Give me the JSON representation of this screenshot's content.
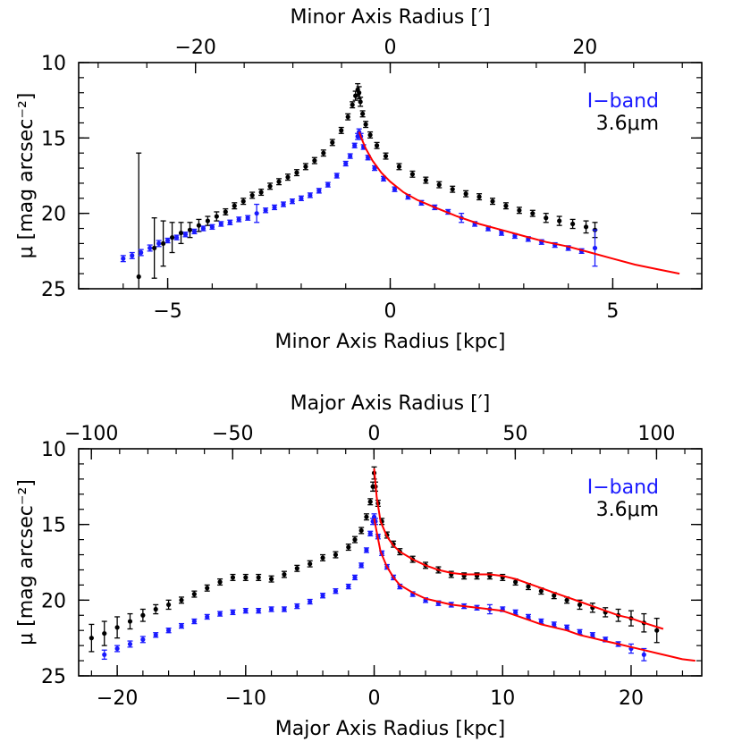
{
  "chart_data": [
    {
      "type": "scatter",
      "panel": "minor",
      "xlabel": "Minor Axis Radius [kpc]",
      "x2label": "Minor Axis Radius [′]",
      "ylabel": "μ [mag arcsec⁻²]",
      "xlim": [
        -7.0,
        7.0
      ],
      "x2lim": [
        -32.0,
        32.0
      ],
      "ylim": [
        25,
        10
      ],
      "x_ticks": [
        -5,
        0,
        5
      ],
      "x2_ticks": [
        -20,
        0,
        20
      ],
      "y_ticks": [
        10,
        15,
        20,
        25
      ],
      "colors": {
        "iband": "#1a1aff",
        "irac": "#000000",
        "model": "#ff0000"
      },
      "legend": {
        "position": "top-right",
        "entries": [
          {
            "label": "I−band",
            "color": "#1a1aff"
          },
          {
            "label": "3.6μm",
            "color": "#000000"
          }
        ]
      },
      "series": [
        {
          "name": "3.6μm",
          "color": "#000000",
          "x": [
            -5.65,
            -5.3,
            -5.1,
            -4.9,
            -4.7,
            -4.5,
            -4.3,
            -4.1,
            -3.9,
            -3.7,
            -3.5,
            -3.3,
            -3.1,
            -2.9,
            -2.7,
            -2.5,
            -2.3,
            -2.1,
            -1.9,
            -1.7,
            -1.5,
            -1.3,
            -1.1,
            -0.95,
            -0.85,
            -0.78,
            -0.73,
            -0.7,
            -0.67,
            -0.62,
            -0.55,
            -0.45,
            -0.3,
            -0.1,
            0.2,
            0.5,
            0.8,
            1.1,
            1.4,
            1.7,
            2.0,
            2.3,
            2.6,
            2.9,
            3.2,
            3.5,
            3.8,
            4.1,
            4.4,
            4.6
          ],
          "y": [
            24.2,
            22.3,
            22.0,
            21.6,
            21.3,
            21.1,
            20.8,
            20.5,
            20.2,
            19.9,
            19.5,
            19.2,
            18.8,
            18.6,
            18.2,
            17.9,
            17.6,
            17.3,
            16.9,
            16.5,
            16.0,
            15.3,
            14.5,
            13.6,
            12.8,
            12.2,
            11.8,
            12.0,
            12.6,
            13.4,
            14.1,
            14.8,
            15.5,
            16.2,
            16.9,
            17.4,
            17.8,
            18.1,
            18.4,
            18.7,
            18.9,
            19.2,
            19.5,
            19.8,
            20.0,
            20.3,
            20.5,
            20.7,
            20.9,
            21.1
          ],
          "yerr": [
            8.2,
            2.0,
            1.5,
            1.0,
            0.7,
            0.5,
            0.4,
            0.3,
            0.3,
            0.2,
            0.2,
            0.2,
            0.2,
            0.2,
            0.2,
            0.2,
            0.2,
            0.2,
            0.2,
            0.2,
            0.2,
            0.2,
            0.2,
            0.2,
            0.2,
            0.3,
            0.4,
            0.4,
            0.3,
            0.2,
            0.2,
            0.2,
            0.2,
            0.2,
            0.2,
            0.2,
            0.2,
            0.2,
            0.2,
            0.2,
            0.2,
            0.2,
            0.2,
            0.2,
            0.2,
            0.3,
            0.3,
            0.3,
            0.4,
            0.5
          ]
        },
        {
          "name": "I−band",
          "color": "#1a1aff",
          "x": [
            -6.0,
            -5.8,
            -5.6,
            -5.4,
            -5.2,
            -5.0,
            -4.8,
            -4.6,
            -4.4,
            -4.2,
            -4.0,
            -3.8,
            -3.6,
            -3.4,
            -3.2,
            -3.0,
            -2.8,
            -2.6,
            -2.4,
            -2.2,
            -2.0,
            -1.8,
            -1.6,
            -1.4,
            -1.2,
            -1.0,
            -0.9,
            -0.8,
            -0.73,
            -0.7,
            -0.66,
            -0.6,
            -0.5,
            -0.35,
            -0.15,
            0.1,
            0.4,
            0.7,
            1.0,
            1.3,
            1.6,
            1.9,
            2.2,
            2.5,
            2.8,
            3.1,
            3.4,
            3.7,
            4.0,
            4.3,
            4.6
          ],
          "y": [
            23.0,
            22.8,
            22.6,
            22.3,
            22.0,
            21.8,
            21.6,
            21.4,
            21.2,
            21.0,
            20.9,
            20.7,
            20.6,
            20.4,
            20.3,
            20.0,
            19.8,
            19.6,
            19.4,
            19.2,
            19.0,
            18.8,
            18.5,
            18.1,
            17.5,
            16.7,
            16.2,
            15.5,
            14.9,
            14.6,
            14.9,
            15.6,
            16.3,
            17.0,
            17.7,
            18.4,
            18.9,
            19.3,
            19.6,
            19.9,
            20.3,
            20.7,
            21.0,
            21.3,
            21.5,
            21.7,
            21.9,
            22.1,
            22.3,
            22.5,
            22.3
          ],
          "yerr": [
            0.2,
            0.2,
            0.2,
            0.2,
            0.2,
            0.15,
            0.15,
            0.15,
            0.15,
            0.15,
            0.15,
            0.15,
            0.15,
            0.15,
            0.15,
            0.6,
            0.15,
            0.15,
            0.15,
            0.15,
            0.15,
            0.15,
            0.15,
            0.15,
            0.15,
            0.15,
            0.15,
            0.15,
            0.2,
            0.2,
            0.2,
            0.15,
            0.15,
            0.15,
            0.15,
            0.15,
            0.15,
            0.15,
            0.15,
            0.15,
            0.3,
            0.15,
            0.15,
            0.15,
            0.15,
            0.15,
            0.15,
            0.15,
            0.15,
            0.15,
            1.2
          ]
        }
      ],
      "models": [
        {
          "color": "#ff0000",
          "x": [
            -0.7,
            -0.65,
            -0.55,
            -0.4,
            -0.2,
            0.0,
            0.3,
            0.6,
            1.0,
            1.5,
            2.0,
            2.5,
            3.0,
            3.5,
            4.0,
            4.5,
            5.0,
            5.5,
            6.0,
            6.5
          ],
          "y": [
            14.6,
            15.0,
            15.7,
            16.5,
            17.3,
            17.9,
            18.6,
            19.1,
            19.6,
            20.2,
            20.7,
            21.1,
            21.5,
            21.9,
            22.2,
            22.6,
            23.0,
            23.4,
            23.7,
            24.0
          ]
        }
      ]
    },
    {
      "type": "scatter",
      "panel": "major",
      "xlabel": "Major Axis Radius [kpc]",
      "x2label": "Major Axis Radius [′]",
      "ylabel": "μ [mag arcsec⁻²]",
      "xlim": [
        -23.0,
        25.5
      ],
      "x2lim": [
        -104.5,
        116.0
      ],
      "ylim": [
        25,
        10
      ],
      "x_ticks": [
        -20,
        -10,
        0,
        10,
        20
      ],
      "x2_ticks": [
        -100,
        -50,
        0,
        50,
        100
      ],
      "y_ticks": [
        10,
        15,
        20,
        25
      ],
      "colors": {
        "iband": "#1a1aff",
        "irac": "#000000",
        "model": "#ff0000"
      },
      "legend": {
        "position": "top-right",
        "entries": [
          {
            "label": "I−band",
            "color": "#1a1aff"
          },
          {
            "label": "3.6μm",
            "color": "#000000"
          }
        ]
      },
      "series": [
        {
          "name": "3.6μm",
          "color": "#000000",
          "x": [
            -22,
            -21,
            -20,
            -19,
            -18,
            -17,
            -16,
            -15,
            -14,
            -13,
            -12,
            -11,
            -10,
            -9,
            -8,
            -7,
            -6,
            -5,
            -4,
            -3,
            -2,
            -1.5,
            -1,
            -0.6,
            -0.3,
            -0.1,
            0,
            0.1,
            0.3,
            0.6,
            1,
            1.5,
            2,
            3,
            4,
            5,
            6,
            7,
            8,
            9,
            10,
            11,
            12,
            13,
            14,
            15,
            16,
            17,
            18,
            19,
            20,
            21,
            22
          ],
          "y": [
            22.5,
            22.2,
            21.8,
            21.4,
            21.0,
            20.6,
            20.3,
            20.0,
            19.6,
            19.2,
            18.8,
            18.5,
            18.5,
            18.5,
            18.6,
            18.3,
            17.9,
            17.6,
            17.2,
            17.0,
            16.5,
            16.0,
            15.4,
            14.5,
            13.5,
            12.5,
            11.6,
            12.5,
            13.6,
            14.8,
            15.7,
            16.3,
            16.8,
            17.3,
            17.7,
            18.0,
            18.3,
            18.4,
            18.4,
            18.4,
            18.5,
            18.8,
            19.1,
            19.4,
            19.7,
            20.0,
            20.3,
            20.5,
            20.8,
            21.0,
            21.2,
            21.5,
            22.0
          ],
          "yerr": [
            0.9,
            0.8,
            0.7,
            0.5,
            0.4,
            0.3,
            0.3,
            0.2,
            0.2,
            0.2,
            0.2,
            0.2,
            0.2,
            0.2,
            0.2,
            0.2,
            0.2,
            0.2,
            0.2,
            0.2,
            0.2,
            0.2,
            0.2,
            0.2,
            0.2,
            0.3,
            0.4,
            0.3,
            0.2,
            0.2,
            0.2,
            0.2,
            0.2,
            0.2,
            0.2,
            0.2,
            0.2,
            0.2,
            0.2,
            0.2,
            0.2,
            0.2,
            0.2,
            0.2,
            0.2,
            0.2,
            0.3,
            0.3,
            0.3,
            0.4,
            0.5,
            0.6,
            0.8
          ]
        },
        {
          "name": "I−band",
          "color": "#1a1aff",
          "x": [
            -21,
            -20,
            -19,
            -18,
            -17,
            -16,
            -15,
            -14,
            -13,
            -12,
            -11,
            -10,
            -9,
            -8,
            -7,
            -6,
            -5,
            -4,
            -3,
            -2,
            -1.5,
            -1,
            -0.6,
            -0.3,
            -0.1,
            0,
            0.1,
            0.3,
            0.6,
            1,
            1.5,
            2,
            3,
            4,
            5,
            6,
            7,
            8,
            9,
            10,
            11,
            12,
            13,
            14,
            15,
            16,
            17,
            18,
            19,
            20,
            21
          ],
          "y": [
            23.6,
            23.2,
            22.9,
            22.6,
            22.3,
            22.0,
            21.7,
            21.4,
            21.1,
            20.9,
            20.8,
            20.7,
            20.7,
            20.6,
            20.6,
            20.4,
            20.1,
            19.7,
            19.4,
            19.1,
            18.5,
            17.7,
            16.7,
            15.6,
            14.8,
            14.5,
            14.8,
            15.8,
            16.9,
            17.8,
            18.5,
            19.1,
            19.6,
            20.0,
            20.2,
            20.3,
            20.4,
            20.5,
            20.6,
            20.6,
            20.8,
            21.1,
            21.4,
            21.6,
            21.8,
            22.1,
            22.3,
            22.6,
            22.9,
            23.2,
            23.6
          ],
          "yerr": [
            0.3,
            0.2,
            0.2,
            0.2,
            0.15,
            0.15,
            0.15,
            0.15,
            0.15,
            0.15,
            0.15,
            0.15,
            0.15,
            0.15,
            0.15,
            0.15,
            0.15,
            0.15,
            0.15,
            0.15,
            0.15,
            0.15,
            0.15,
            0.15,
            0.2,
            0.2,
            0.2,
            0.15,
            0.15,
            0.15,
            0.15,
            0.15,
            0.15,
            0.15,
            0.15,
            0.15,
            0.15,
            0.15,
            0.3,
            0.15,
            0.15,
            0.15,
            0.15,
            0.15,
            0.15,
            0.15,
            0.15,
            0.15,
            0.15,
            0.3,
            0.4
          ]
        }
      ],
      "models": [
        {
          "color": "#ff0000",
          "x": [
            0,
            0.2,
            0.5,
            1,
            1.5,
            2,
            3,
            4,
            5,
            6,
            7,
            8,
            9,
            10,
            11,
            12,
            13,
            14,
            15,
            16,
            17,
            18,
            19,
            20,
            21,
            22.5
          ],
          "y": [
            11.3,
            13.2,
            14.8,
            15.8,
            16.4,
            16.8,
            17.3,
            17.7,
            18.0,
            18.2,
            18.3,
            18.3,
            18.3,
            18.4,
            18.6,
            18.9,
            19.2,
            19.5,
            19.8,
            20.1,
            20.4,
            20.7,
            21.0,
            21.2,
            21.5,
            21.9
          ]
        },
        {
          "color": "#ff0000",
          "x": [
            0,
            0.2,
            0.5,
            1,
            1.5,
            2,
            3,
            4,
            5,
            6,
            7,
            8,
            9,
            10,
            11,
            12,
            13,
            14,
            15,
            16,
            17,
            18,
            19,
            20,
            21,
            22,
            23,
            24,
            25
          ],
          "y": [
            14.6,
            15.5,
            16.8,
            17.8,
            18.5,
            19.0,
            19.5,
            19.9,
            20.1,
            20.3,
            20.4,
            20.5,
            20.6,
            20.7,
            21.0,
            21.3,
            21.6,
            21.8,
            22.0,
            22.3,
            22.5,
            22.7,
            22.9,
            23.1,
            23.3,
            23.5,
            23.7,
            23.9,
            24.0
          ]
        }
      ]
    }
  ]
}
